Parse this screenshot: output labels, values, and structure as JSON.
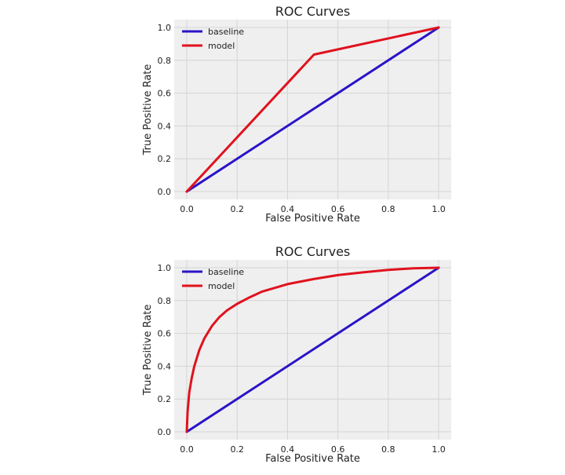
{
  "colors": {
    "background": "#ffffff",
    "plot_background": "#efefef",
    "grid": "#d4d4d4",
    "baseline": "#2a14c8",
    "model": "#e0121e"
  },
  "chart_data": [
    {
      "type": "line",
      "title": "ROC Curves",
      "xlabel": "False Positive Rate",
      "ylabel": "True Positive Rate",
      "xlim": [
        0,
        1
      ],
      "ylim": [
        0,
        1
      ],
      "x_ticks": [
        0.0,
        0.2,
        0.4,
        0.6,
        0.8,
        1.0
      ],
      "y_ticks": [
        0.0,
        0.2,
        0.4,
        0.6,
        0.8,
        1.0
      ],
      "x_tick_labels": [
        "0.0",
        "0.2",
        "0.4",
        "0.6",
        "0.8",
        "1.0"
      ],
      "y_tick_labels": [
        "0.0",
        "0.2",
        "0.4",
        "0.6",
        "0.8",
        "1.0"
      ],
      "grid": true,
      "legend": "top-left",
      "series": [
        {
          "name": "baseline",
          "color": "#2a14c8",
          "x": [
            0.0,
            1.0
          ],
          "y": [
            0.0,
            1.0
          ]
        },
        {
          "name": "model",
          "color": "#e0121e",
          "x": [
            0.0,
            0.505,
            1.0
          ],
          "y": [
            0.0,
            0.835,
            1.0
          ]
        }
      ]
    },
    {
      "type": "line",
      "title": "ROC Curves",
      "xlabel": "False Positive Rate",
      "ylabel": "True Positive Rate",
      "xlim": [
        0,
        1
      ],
      "ylim": [
        0,
        1
      ],
      "x_ticks": [
        0.0,
        0.2,
        0.4,
        0.6,
        0.8,
        1.0
      ],
      "y_ticks": [
        0.0,
        0.2,
        0.4,
        0.6,
        0.8,
        1.0
      ],
      "x_tick_labels": [
        "0.0",
        "0.2",
        "0.4",
        "0.6",
        "0.8",
        "1.0"
      ],
      "y_tick_labels": [
        "0.0",
        "0.2",
        "0.4",
        "0.6",
        "0.8",
        "1.0"
      ],
      "grid": true,
      "legend": "top-left",
      "series": [
        {
          "name": "baseline",
          "color": "#2a14c8",
          "x": [
            0.0,
            1.0
          ],
          "y": [
            0.0,
            1.0
          ]
        },
        {
          "name": "model",
          "color": "#e0121e",
          "x": [
            0.0,
            0.003,
            0.01,
            0.02,
            0.03,
            0.05,
            0.07,
            0.1,
            0.13,
            0.16,
            0.2,
            0.25,
            0.3,
            0.4,
            0.5,
            0.6,
            0.7,
            0.8,
            0.9,
            1.0
          ],
          "y": [
            0.0,
            0.12,
            0.24,
            0.33,
            0.4,
            0.5,
            0.57,
            0.645,
            0.7,
            0.74,
            0.78,
            0.82,
            0.855,
            0.9,
            0.93,
            0.955,
            0.972,
            0.987,
            0.996,
            1.0
          ]
        }
      ]
    }
  ]
}
